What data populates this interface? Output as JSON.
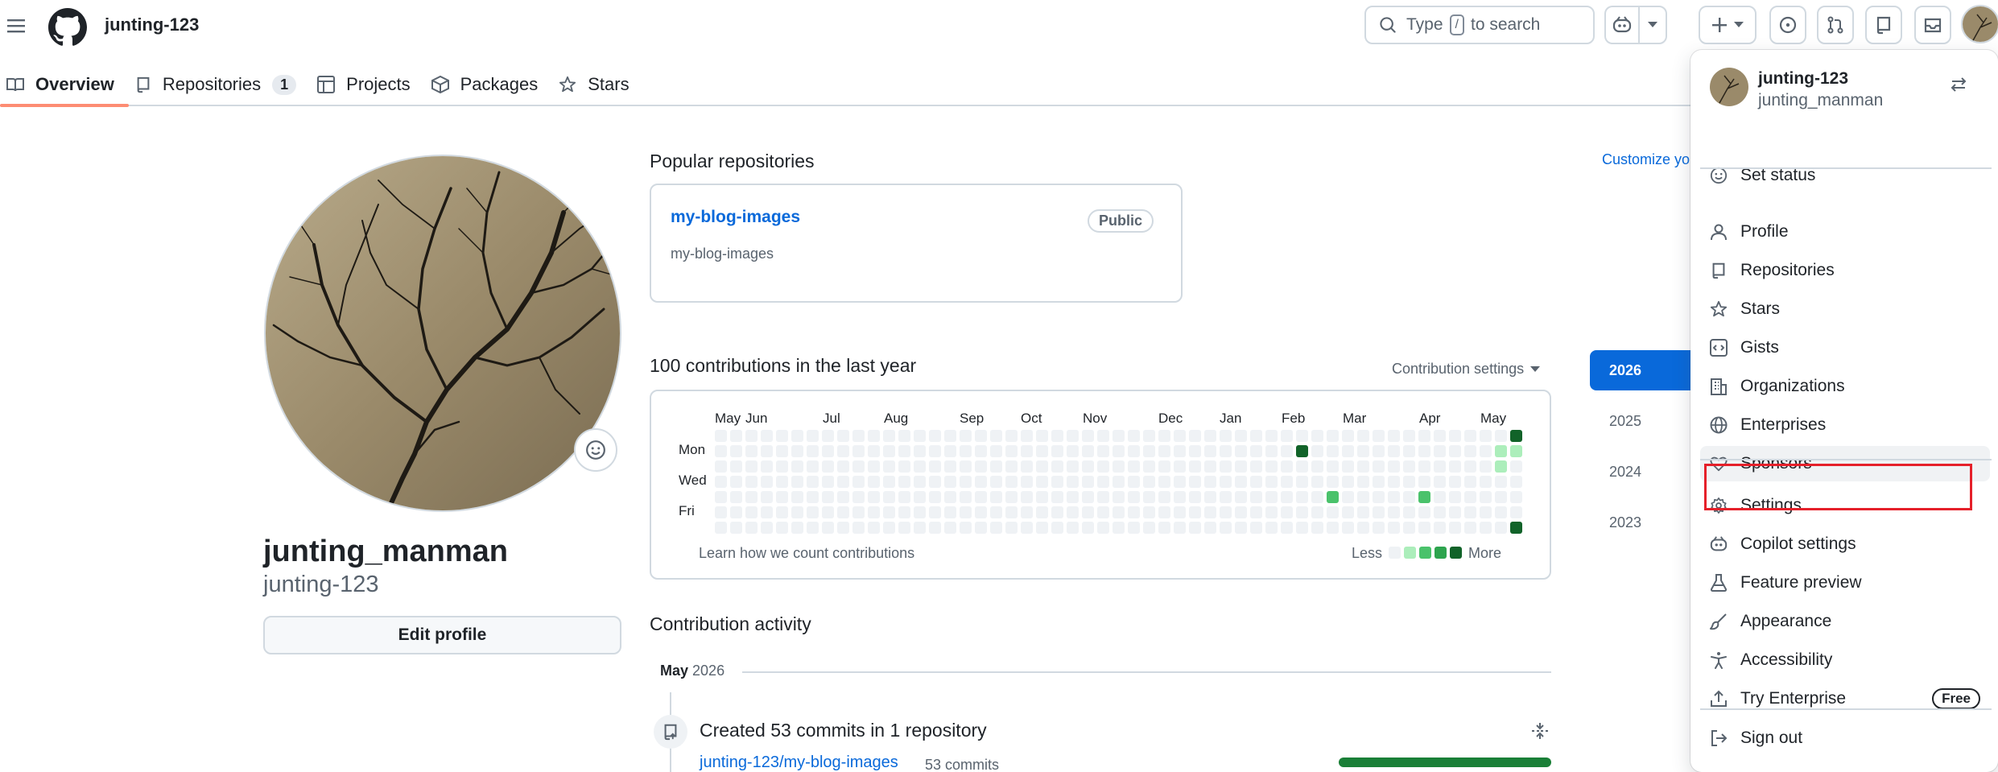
{
  "header": {
    "username": "junting-123",
    "search_prefix": "Type",
    "search_key": "/",
    "search_suffix": "to search"
  },
  "nav": [
    {
      "label": "Overview",
      "active": true
    },
    {
      "label": "Repositories",
      "count": "1"
    },
    {
      "label": "Projects"
    },
    {
      "label": "Packages"
    },
    {
      "label": "Stars"
    }
  ],
  "profile": {
    "full_name": "junting_manman",
    "login": "junting-123",
    "edit_label": "Edit profile"
  },
  "popular": {
    "title": "Popular repositories",
    "customize": "Customize your pins",
    "repo_name": "my-blog-images",
    "badge": "Public",
    "description": "my-blog-images"
  },
  "contributions": {
    "title": "100 contributions in the last year",
    "settings_label": "Contribution settings",
    "months": [
      "May",
      "Jun",
      "Jul",
      "Aug",
      "Sep",
      "Oct",
      "Nov",
      "Dec",
      "Jan",
      "Feb",
      "Mar",
      "Apr",
      "May"
    ],
    "days": [
      "Mon",
      "Wed",
      "Fri"
    ],
    "learn": "Learn how we count contributions",
    "less": "Less",
    "more": "More",
    "level_colors": [
      "#eff2f5",
      "#aceebb",
      "#4ac26b",
      "#2da44e",
      "#116329"
    ]
  },
  "years": [
    "2026",
    "2025",
    "2024",
    "2023"
  ],
  "activity": {
    "title": "Contribution activity",
    "month": "May",
    "year": "2026",
    "event": "Created 53 commits in 1 repository",
    "repo": "junting-123/my-blog-images",
    "count": "53 commits"
  },
  "dropdown": {
    "login": "junting-123",
    "name": "junting_manman",
    "set_status": "Set status",
    "items1": [
      "Profile",
      "Repositories",
      "Stars",
      "Gists",
      "Organizations",
      "Enterprises",
      "Sponsors"
    ],
    "items2": [
      "Settings",
      "Copilot settings",
      "Feature preview",
      "Appearance",
      "Accessibility",
      "Try Enterprise"
    ],
    "free_badge": "Free",
    "sign_out": "Sign out"
  }
}
